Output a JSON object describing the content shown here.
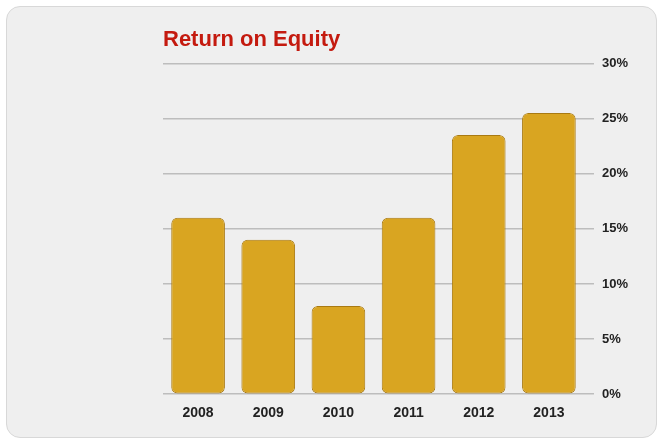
{
  "chart_data": {
    "type": "bar",
    "title": "Return on Equity",
    "categories": [
      "2008",
      "2009",
      "2010",
      "2011",
      "2012",
      "2013"
    ],
    "values": [
      16,
      14,
      8,
      16,
      23.5,
      25.5
    ],
    "color": "#d9a521",
    "ylim": [
      0,
      30
    ],
    "yticks": [
      {
        "value": 0,
        "label": "0%"
      },
      {
        "value": 5,
        "label": "5%"
      },
      {
        "value": 10,
        "label": "10%"
      },
      {
        "value": 15,
        "label": "15%"
      },
      {
        "value": 20,
        "label": "20%"
      },
      {
        "value": 25,
        "label": "25%"
      },
      {
        "value": 30,
        "label": "30%"
      }
    ],
    "grid": true
  }
}
